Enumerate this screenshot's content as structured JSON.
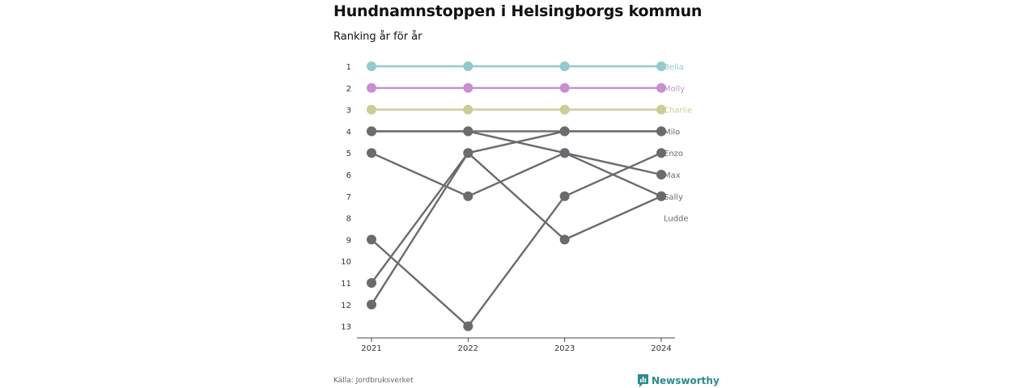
{
  "title": "Hundnamnstoppen i Helsingborgs kommun",
  "subtitle": "Ranking år för år",
  "source": "Källa: Jordbruksverket",
  "brand": "Newsworthy",
  "colors": {
    "neutral": "#6b6a6e",
    "brand": "#2a8c8e"
  },
  "chart_data": {
    "type": "line",
    "x": [
      "2021",
      "2022",
      "2023",
      "2024"
    ],
    "ylim": [
      1,
      13
    ],
    "y_reversed": true,
    "y_ticks": [
      "1",
      "2",
      "3",
      "4",
      "5",
      "6",
      "7",
      "8",
      "9",
      "10",
      "11",
      "12",
      "13"
    ],
    "grid": false,
    "series": [
      {
        "name": "Bella",
        "values": [
          1,
          1,
          1,
          1
        ],
        "color": "#92cbcb"
      },
      {
        "name": "Molly",
        "values": [
          2,
          2,
          2,
          2
        ],
        "color": "#c98fce"
      },
      {
        "name": "Charlie",
        "values": [
          3,
          3,
          3,
          3
        ],
        "color": "#cfcb98"
      },
      {
        "name": "Milo",
        "values": [
          4,
          4,
          4,
          4
        ],
        "color": "#6b6a6e"
      },
      {
        "name": "Enzo",
        "values": [
          9,
          13,
          7,
          5
        ],
        "color": "#6b6a6e"
      },
      {
        "name": "Max",
        "values": [
          4,
          4,
          5,
          6
        ],
        "color": "#6b6a6e"
      },
      {
        "name": "Sally",
        "values": [
          5,
          7,
          5,
          7
        ],
        "color": "#6b6a6e"
      },
      {
        "name": "Ludde",
        "values": [
          11,
          5,
          9,
          7
        ],
        "color": "#6b6a6e"
      },
      {
        "name": "",
        "values": [
          12,
          5,
          4,
          4
        ],
        "color": "#6b6a6e"
      }
    ],
    "end_labels": [
      "Bella",
      "Molly",
      "Charlie",
      "Milo",
      "Enzo",
      "Max",
      "Sally",
      "Ludde"
    ]
  }
}
